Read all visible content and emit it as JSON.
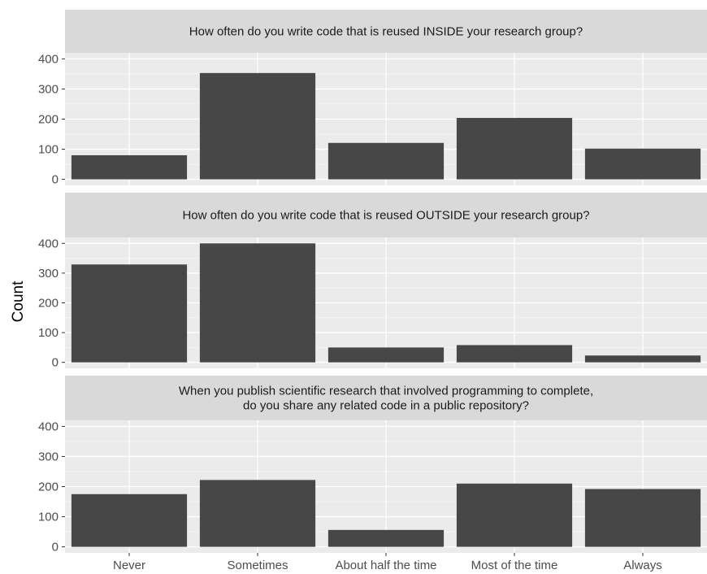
{
  "chart_data": {
    "type": "bar",
    "ylabel": "Count",
    "xlabel": "",
    "ylim": [
      0,
      400
    ],
    "yticks": [
      0,
      100,
      200,
      300,
      400
    ],
    "grid": true,
    "categories": [
      "Never",
      "Sometimes",
      "About half the time",
      "Most of the time",
      "Always"
    ],
    "colors": {
      "bar": "#474747",
      "panel_background": "#ebebeb",
      "strip_background": "#d9d9d9",
      "grid_major": "#ffffff",
      "tick_text": "#4d4d4d"
    },
    "facets": [
      {
        "title_lines": [
          "How often do you write code that is reused INSIDE your research group?"
        ],
        "values": [
          80,
          353,
          121,
          204,
          102
        ]
      },
      {
        "title_lines": [
          "How often do you write code that is reused OUTSIDE your research group?"
        ],
        "values": [
          329,
          400,
          50,
          58,
          23
        ]
      },
      {
        "title_lines": [
          "When you publish scientific research that involved programming to complete,",
          "do you share any related code in a public repository?"
        ],
        "values": [
          175,
          222,
          56,
          210,
          192
        ]
      }
    ]
  }
}
